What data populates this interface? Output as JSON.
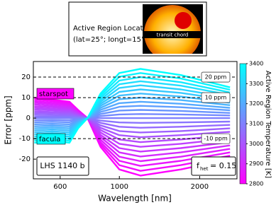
{
  "chart_data": {
    "type": "line",
    "xlabel": "Wavelength [nm]",
    "ylabel": "Error [ppm]",
    "xscale": "log",
    "xlim": [
      476,
      2760
    ],
    "xticks": [
      600,
      1000,
      2000
    ],
    "ylim": [
      -29.6,
      27.6
    ],
    "yticks": [
      -20,
      -10,
      0,
      10,
      20
    ],
    "x": [
      480,
      560,
      650,
      700,
      760,
      850,
      1000,
      1200,
      1700,
      2600
    ],
    "series": [
      {
        "color": "#ff00ff",
        "values": [
          10,
          9,
          8,
          4,
          0,
          -14,
          -25,
          -28,
          -25,
          -20
        ]
      },
      {
        "color": "#f40bff",
        "values": [
          9.2,
          8.3,
          7.3,
          3.7,
          0,
          -12.8,
          -22.9,
          -25.7,
          -22.9,
          -18.3
        ]
      },
      {
        "color": "#ea15ff",
        "values": [
          8.3,
          7.5,
          6.7,
          3.3,
          0,
          -11.7,
          -20.8,
          -23.3,
          -20.8,
          -16.7
        ]
      },
      {
        "color": "#df20ff",
        "values": [
          7.5,
          6.8,
          6,
          3,
          0,
          -10.5,
          -18.8,
          -21,
          -18.8,
          -15
        ]
      },
      {
        "color": "#d42bff",
        "values": [
          6.7,
          6,
          5.3,
          2.7,
          0,
          -9.3,
          -16.7,
          -18.7,
          -16.7,
          -13.3
        ]
      },
      {
        "color": "#ca35ff",
        "values": [
          5.8,
          5.3,
          4.7,
          2.3,
          0,
          -8.2,
          -14.6,
          -16.3,
          -14.6,
          -11.7
        ]
      },
      {
        "color": "#bf40ff",
        "values": [
          5,
          4.5,
          4,
          2,
          0,
          -7,
          -12.5,
          -14,
          -12.5,
          -10
        ]
      },
      {
        "color": "#b54aff",
        "values": [
          4.2,
          3.8,
          3.3,
          1.7,
          0,
          -5.8,
          -10.4,
          -11.7,
          -10.4,
          -8.3
        ]
      },
      {
        "color": "#aa55ff",
        "values": [
          3.3,
          3,
          2.7,
          1.3,
          0,
          -4.7,
          -8.3,
          -9.3,
          -8.3,
          -6.7
        ]
      },
      {
        "color": "#9f60ff",
        "values": [
          2.5,
          2.3,
          2,
          1,
          0,
          -3.5,
          -6.3,
          -7,
          -6.3,
          -5
        ]
      },
      {
        "color": "#956aff",
        "values": [
          1.7,
          1.5,
          1.3,
          0.7,
          0,
          -2.3,
          -4.2,
          -4.7,
          -4.2,
          -3.3
        ]
      },
      {
        "color": "#8a75ff",
        "values": [
          0.8,
          0.8,
          0.7,
          0.3,
          0,
          -1.2,
          -2.1,
          -2.3,
          -2.1,
          -1.7
        ]
      },
      {
        "color": "#8080ff",
        "values": [
          0,
          0,
          0,
          0,
          0,
          0,
          0,
          0,
          0,
          0
        ]
      },
      {
        "color": "#758aff",
        "values": [
          -1,
          -0.9,
          -1,
          -0.4,
          0,
          1,
          1.8,
          2,
          1.8,
          1.3
        ]
      },
      {
        "color": "#6a95ff",
        "values": [
          -2,
          -1.8,
          -2,
          -0.8,
          0,
          2,
          3.7,
          4,
          3.5,
          2.5
        ]
      },
      {
        "color": "#609fff",
        "values": [
          -3,
          -2.8,
          -3,
          -1.3,
          0,
          3,
          5.5,
          6,
          5.3,
          3.8
        ]
      },
      {
        "color": "#55aaff",
        "values": [
          -4,
          -3.7,
          -4,
          -1.7,
          0,
          4,
          7.3,
          8,
          7,
          5
        ]
      },
      {
        "color": "#4ab5ff",
        "values": [
          -5,
          -4.6,
          -5,
          -2.1,
          0,
          5,
          9.2,
          10,
          8.8,
          6.3
        ]
      },
      {
        "color": "#40bfff",
        "values": [
          -6,
          -5.5,
          -6,
          -2.5,
          0,
          6,
          11,
          12,
          10.5,
          7.5
        ]
      },
      {
        "color": "#35caff",
        "values": [
          -7,
          -6.4,
          -7,
          -2.9,
          0,
          7,
          12.8,
          14,
          12.3,
          8.8
        ]
      },
      {
        "color": "#2bd4ff",
        "values": [
          -8,
          -7.3,
          -8,
          -3.3,
          0,
          8,
          14.7,
          16,
          14,
          10
        ]
      },
      {
        "color": "#20dfff",
        "values": [
          -9,
          -8.3,
          -9,
          -3.8,
          0,
          9,
          16.5,
          18,
          15.8,
          11.3
        ]
      },
      {
        "color": "#15eaff",
        "values": [
          -10,
          -9.2,
          -10,
          -4.2,
          0,
          10,
          18.3,
          20,
          17.5,
          12.5
        ]
      },
      {
        "color": "#0bf4ff",
        "values": [
          -11,
          -10.1,
          -11,
          -4.6,
          0,
          11,
          20.2,
          22,
          19.3,
          13.8
        ]
      },
      {
        "color": "#00ffff",
        "values": [
          -12,
          -11,
          -12,
          -5,
          0,
          12,
          22,
          24,
          21,
          15
        ]
      }
    ],
    "hlines": [
      {
        "value": 20,
        "label": "20 ppm"
      },
      {
        "value": 10,
        "label": "10 ppm"
      },
      {
        "value": -10,
        "label": "-10 ppm"
      }
    ],
    "annotations": {
      "starspot": "starspot",
      "facula": "facula",
      "planet": "LHS 1140 b",
      "fhet": {
        "symbol": "f",
        "subscript": "het",
        "text": "= 0.15"
      }
    },
    "colorbar": {
      "label": "Active Region Temperature [K]",
      "clim": [
        2800,
        3400
      ],
      "ticks": [
        2800,
        2900,
        3000,
        3100,
        3200,
        3300,
        3400
      ],
      "colors": [
        "#ff00ff",
        "#00ffff"
      ]
    }
  },
  "inset": {
    "title": "Active Region Location:",
    "coords": "(lat=25°; longt=15°)",
    "chord_label": "transit chord"
  }
}
